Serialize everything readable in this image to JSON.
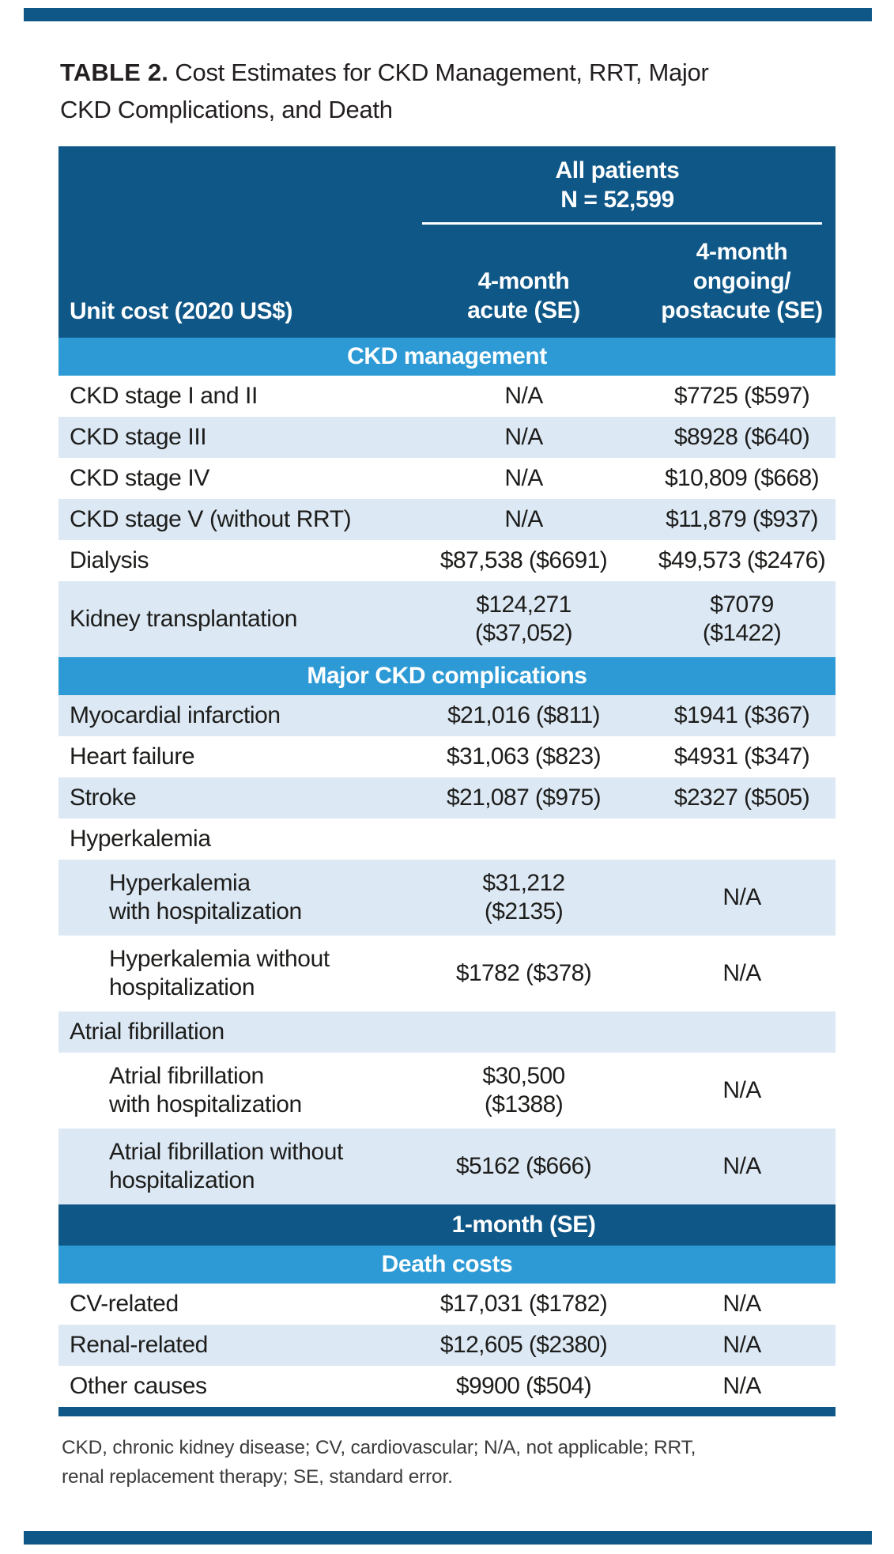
{
  "title": {
    "label": "TABLE 2.",
    "rest": "Cost Estimates for CKD Management, RRT, Major\nCKD Complications, and Death"
  },
  "colors": {
    "navy": "#0e5787",
    "section_blue": "#2d9ad5",
    "row_stripe": "#dce8f4"
  },
  "header": {
    "col1": "Unit cost (2020 US$)",
    "span_group": "All patients\nN = 52,599",
    "col2": "4-month\nacute (SE)",
    "col3": "4-month\nongoing/\npostacute (SE)"
  },
  "sections": {
    "ckd_management": "CKD management",
    "major_complications": "Major CKD complications",
    "one_month": "1-month (SE)",
    "death_costs": "Death costs"
  },
  "rows": [
    {
      "label": "CKD stage I and II",
      "col2": "N/A",
      "col3": "$7725 ($597)"
    },
    {
      "label": "CKD stage III",
      "col2": "N/A",
      "col3": "$8928 ($640)"
    },
    {
      "label": "CKD stage IV",
      "col2": "N/A",
      "col3": "$10,809 ($668)"
    },
    {
      "label": "CKD stage V (without RRT)",
      "col2": "N/A",
      "col3": "$11,879 ($937)"
    },
    {
      "label": "Dialysis",
      "col2": "$87,538 ($6691)",
      "col3": "$49,573 ($2476)"
    },
    {
      "label": "Kidney transplantation",
      "col2": "$124,271\n($37,052)",
      "col3": "$7079\n($1422)"
    },
    {
      "label": "Myocardial infarction",
      "col2": "$21,016 ($811)",
      "col3": "$1941 ($367)"
    },
    {
      "label": "Heart failure",
      "col2": "$31,063 ($823)",
      "col3": "$4931 ($347)"
    },
    {
      "label": "Stroke",
      "col2": "$21,087 ($975)",
      "col3": "$2327 ($505)"
    },
    {
      "label": "Hyperkalemia",
      "col2": "",
      "col3": ""
    },
    {
      "label": "Hyperkalemia\nwith hospitalization",
      "col2": "$31,212\n($2135)",
      "col3": "N/A"
    },
    {
      "label": "Hyperkalemia without\nhospitalization",
      "col2": "$1782 ($378)",
      "col3": "N/A"
    },
    {
      "label": "Atrial fibrillation",
      "col2": "",
      "col3": ""
    },
    {
      "label": "Atrial fibrillation\nwith hospitalization",
      "col2": "$30,500\n($1388)",
      "col3": "N/A"
    },
    {
      "label": "Atrial fibrillation without\nhospitalization",
      "col2": "$5162 ($666)",
      "col3": "N/A"
    },
    {
      "label": "CV-related",
      "col2": "$17,031 ($1782)",
      "col3": "N/A"
    },
    {
      "label": "Renal-related",
      "col2": "$12,605 ($2380)",
      "col3": "N/A"
    },
    {
      "label": "Other causes",
      "col2": "$9900 ($504)",
      "col3": "N/A"
    }
  ],
  "footnote": "CKD, chronic kidney disease; CV, cardiovascular; N/A, not applicable; RRT,\nrenal replacement therapy; SE, standard error."
}
